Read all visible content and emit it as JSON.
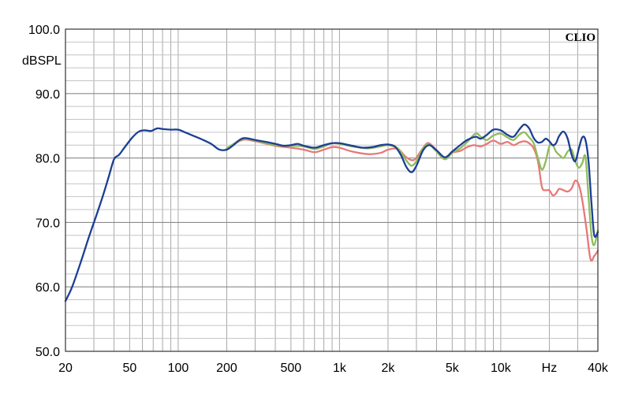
{
  "chart_data": {
    "type": "line",
    "brand": "CLIO",
    "ylabel": "dBSPL",
    "xscale": "log",
    "xlim": [
      20,
      40000
    ],
    "ylim": [
      50,
      100
    ],
    "grid": true,
    "xticks": [
      {
        "value": 20,
        "label": "20"
      },
      {
        "value": 50,
        "label": "50"
      },
      {
        "value": 100,
        "label": "100"
      },
      {
        "value": 200,
        "label": "200"
      },
      {
        "value": 500,
        "label": "500"
      },
      {
        "value": 1000,
        "label": "1k"
      },
      {
        "value": 2000,
        "label": "2k"
      },
      {
        "value": 5000,
        "label": "5k"
      },
      {
        "value": 10000,
        "label": "10k"
      },
      {
        "value": 20000,
        "label": "Hz"
      },
      {
        "value": 40000,
        "label": "40k"
      }
    ],
    "yticks": [
      {
        "value": 100,
        "label": "100.0"
      },
      {
        "value": 90,
        "label": "90.0"
      },
      {
        "value": 80,
        "label": "80.0"
      },
      {
        "value": 70,
        "label": "70.0"
      },
      {
        "value": 60,
        "label": "60.0"
      },
      {
        "value": 50,
        "label": "50.0"
      }
    ],
    "series": [
      {
        "color": "#e87878",
        "points": [
          [
            200,
            81.5
          ],
          [
            250,
            82.8
          ],
          [
            300,
            82.6
          ],
          [
            400,
            81.9
          ],
          [
            500,
            81.6
          ],
          [
            600,
            81.3
          ],
          [
            700,
            80.9
          ],
          [
            800,
            81.3
          ],
          [
            900,
            81.7
          ],
          [
            1000,
            81.6
          ],
          [
            1200,
            81.0
          ],
          [
            1500,
            80.6
          ],
          [
            1800,
            80.8
          ],
          [
            2000,
            81.3
          ],
          [
            2300,
            81.4
          ],
          [
            2600,
            80.1
          ],
          [
            2900,
            79.7
          ],
          [
            3200,
            81.1
          ],
          [
            3500,
            82.3
          ],
          [
            3800,
            81.8
          ],
          [
            4200,
            80.4
          ],
          [
            4600,
            80.0
          ],
          [
            5000,
            80.8
          ],
          [
            5600,
            81.1
          ],
          [
            6200,
            81.7
          ],
          [
            6800,
            82.0
          ],
          [
            7500,
            81.8
          ],
          [
            8200,
            82.2
          ],
          [
            9000,
            82.7
          ],
          [
            10000,
            82.2
          ],
          [
            11000,
            82.5
          ],
          [
            12000,
            82.0
          ],
          [
            13000,
            82.4
          ],
          [
            14000,
            82.6
          ],
          [
            15000,
            82.3
          ],
          [
            16000,
            81.5
          ],
          [
            17000,
            79.5
          ],
          [
            18000,
            75.5
          ],
          [
            19000,
            75.0
          ],
          [
            20000,
            75.0
          ],
          [
            21000,
            74.2
          ],
          [
            22000,
            74.5
          ],
          [
            23000,
            75.2
          ],
          [
            24500,
            75.0
          ],
          [
            26000,
            74.8
          ],
          [
            27500,
            75.3
          ],
          [
            29000,
            76.5
          ],
          [
            30500,
            75.8
          ],
          [
            32000,
            73.5
          ],
          [
            34000,
            69.0
          ],
          [
            36000,
            64.3
          ],
          [
            38000,
            64.8
          ],
          [
            40000,
            65.6
          ]
        ]
      },
      {
        "color": "#8fbc5a",
        "points": [
          [
            200,
            81.5
          ],
          [
            250,
            82.9
          ],
          [
            300,
            82.7
          ],
          [
            400,
            82.0
          ],
          [
            500,
            81.9
          ],
          [
            600,
            81.8
          ],
          [
            700,
            81.4
          ],
          [
            800,
            81.8
          ],
          [
            900,
            82.3
          ],
          [
            1000,
            82.2
          ],
          [
            1200,
            81.8
          ],
          [
            1500,
            81.5
          ],
          [
            1800,
            81.8
          ],
          [
            2000,
            82.0
          ],
          [
            2300,
            81.5
          ],
          [
            2600,
            79.6
          ],
          [
            2800,
            78.8
          ],
          [
            3000,
            79.5
          ],
          [
            3300,
            81.5
          ],
          [
            3600,
            82.1
          ],
          [
            4000,
            81.0
          ],
          [
            4500,
            79.8
          ],
          [
            5000,
            80.8
          ],
          [
            5600,
            81.5
          ],
          [
            6200,
            82.5
          ],
          [
            7000,
            83.8
          ],
          [
            7600,
            83.2
          ],
          [
            8200,
            82.8
          ],
          [
            9000,
            83.5
          ],
          [
            10000,
            83.8
          ],
          [
            11000,
            83.2
          ],
          [
            12000,
            82.8
          ],
          [
            13000,
            83.6
          ],
          [
            14000,
            84.0
          ],
          [
            15000,
            83.2
          ],
          [
            16000,
            82.3
          ],
          [
            17000,
            80.0
          ],
          [
            18000,
            78.2
          ],
          [
            19000,
            79.5
          ],
          [
            20000,
            81.8
          ],
          [
            21000,
            82.0
          ],
          [
            22000,
            81.0
          ],
          [
            23000,
            80.5
          ],
          [
            24500,
            80.0
          ],
          [
            26000,
            81.0
          ],
          [
            27500,
            81.3
          ],
          [
            29000,
            79.5
          ],
          [
            30500,
            78.5
          ],
          [
            32000,
            79.2
          ],
          [
            33500,
            80.2
          ],
          [
            35000,
            74.0
          ],
          [
            36500,
            68.0
          ],
          [
            38000,
            66.5
          ],
          [
            40000,
            68.8
          ]
        ]
      },
      {
        "color": "#1c3f94",
        "points": [
          [
            20,
            57.8
          ],
          [
            22,
            60.0
          ],
          [
            25,
            64.0
          ],
          [
            28,
            67.8
          ],
          [
            31,
            71.0
          ],
          [
            34,
            74.0
          ],
          [
            37,
            77.0
          ],
          [
            40,
            79.8
          ],
          [
            43,
            80.5
          ],
          [
            47,
            81.8
          ],
          [
            52,
            83.2
          ],
          [
            57,
            84.1
          ],
          [
            62,
            84.3
          ],
          [
            68,
            84.2
          ],
          [
            74,
            84.6
          ],
          [
            80,
            84.5
          ],
          [
            90,
            84.4
          ],
          [
            100,
            84.4
          ],
          [
            110,
            84.0
          ],
          [
            120,
            83.6
          ],
          [
            140,
            82.9
          ],
          [
            160,
            82.2
          ],
          [
            180,
            81.3
          ],
          [
            200,
            81.3
          ],
          [
            220,
            82.0
          ],
          [
            240,
            82.8
          ],
          [
            260,
            83.1
          ],
          [
            300,
            82.8
          ],
          [
            350,
            82.5
          ],
          [
            400,
            82.2
          ],
          [
            450,
            81.9
          ],
          [
            500,
            82.0
          ],
          [
            550,
            82.2
          ],
          [
            600,
            81.9
          ],
          [
            700,
            81.6
          ],
          [
            800,
            82.0
          ],
          [
            900,
            82.3
          ],
          [
            1000,
            82.3
          ],
          [
            1200,
            81.9
          ],
          [
            1400,
            81.6
          ],
          [
            1600,
            81.7
          ],
          [
            1800,
            82.0
          ],
          [
            2000,
            82.1
          ],
          [
            2200,
            81.8
          ],
          [
            2400,
            80.5
          ],
          [
            2600,
            78.6
          ],
          [
            2800,
            77.8
          ],
          [
            3000,
            78.8
          ],
          [
            3300,
            81.2
          ],
          [
            3600,
            82.0
          ],
          [
            4000,
            81.2
          ],
          [
            4500,
            80.1
          ],
          [
            5000,
            81.0
          ],
          [
            5600,
            82.0
          ],
          [
            6200,
            82.8
          ],
          [
            7000,
            83.3
          ],
          [
            7500,
            83.0
          ],
          [
            8200,
            83.6
          ],
          [
            9000,
            84.4
          ],
          [
            10000,
            84.3
          ],
          [
            11000,
            83.6
          ],
          [
            12000,
            83.3
          ],
          [
            13000,
            84.4
          ],
          [
            14000,
            85.2
          ],
          [
            15000,
            84.6
          ],
          [
            16000,
            83.1
          ],
          [
            17000,
            82.4
          ],
          [
            18000,
            82.5
          ],
          [
            19000,
            83.0
          ],
          [
            20000,
            82.6
          ],
          [
            21000,
            82.0
          ],
          [
            22000,
            82.3
          ],
          [
            23000,
            83.4
          ],
          [
            24500,
            84.1
          ],
          [
            26000,
            83.0
          ],
          [
            27500,
            80.5
          ],
          [
            29000,
            79.5
          ],
          [
            30500,
            81.5
          ],
          [
            32000,
            83.2
          ],
          [
            33500,
            82.8
          ],
          [
            35000,
            79.5
          ],
          [
            36500,
            73.0
          ],
          [
            38000,
            68.0
          ],
          [
            40000,
            68.5
          ]
        ]
      }
    ]
  }
}
